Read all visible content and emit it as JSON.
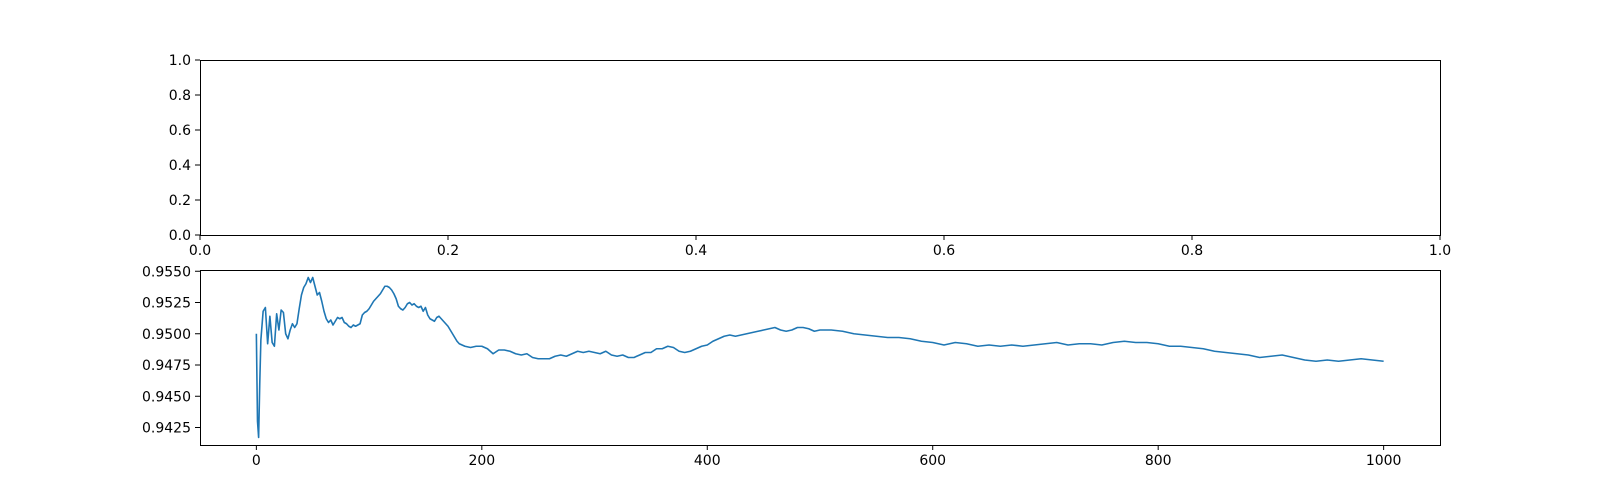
{
  "chart_data": [
    {
      "type": "line",
      "title": "",
      "xlabel": "",
      "ylabel": "",
      "xlim": [
        0,
        1
      ],
      "ylim": [
        0,
        1
      ],
      "xticks": [
        "0.0",
        "0.2",
        "0.4",
        "0.6",
        "0.8",
        "1.0"
      ],
      "yticks": [
        "0.0",
        "0.2",
        "0.4",
        "0.6",
        "0.8",
        "1.0"
      ],
      "grid": false,
      "series": []
    },
    {
      "type": "line",
      "title": "",
      "xlabel": "",
      "ylabel": "",
      "xlim": [
        -50,
        1050
      ],
      "ylim": [
        0.9411,
        0.9551
      ],
      "xticks": [
        "0",
        "200",
        "400",
        "600",
        "800",
        "1000"
      ],
      "yticks": [
        "0.9425",
        "0.9450",
        "0.9475",
        "0.9500",
        "0.9525",
        "0.9550"
      ],
      "grid": false,
      "line_color": "#1f77b4",
      "series": [
        {
          "x": [
            0,
            1,
            2,
            3,
            4,
            6,
            8,
            10,
            12,
            14,
            16,
            18,
            20,
            22,
            24,
            26,
            28,
            30,
            32,
            34,
            36,
            38,
            40,
            42,
            44,
            46,
            48,
            50,
            52,
            54,
            56,
            58,
            60,
            62,
            64,
            66,
            68,
            70,
            72,
            74,
            76,
            78,
            80,
            82,
            84,
            86,
            88,
            90,
            92,
            94,
            96,
            98,
            100,
            102,
            104,
            106,
            108,
            110,
            112,
            114,
            116,
            118,
            120,
            122,
            124,
            126,
            128,
            130,
            132,
            134,
            136,
            138,
            140,
            142,
            144,
            146,
            148,
            150,
            152,
            154,
            156,
            158,
            160,
            162,
            164,
            166,
            168,
            170,
            172,
            174,
            176,
            178,
            180,
            185,
            190,
            195,
            200,
            205,
            210,
            215,
            220,
            225,
            230,
            235,
            240,
            245,
            250,
            255,
            260,
            265,
            270,
            275,
            280,
            285,
            290,
            295,
            300,
            305,
            310,
            315,
            320,
            325,
            330,
            335,
            340,
            345,
            350,
            355,
            360,
            365,
            370,
            375,
            380,
            385,
            390,
            395,
            400,
            405,
            410,
            415,
            420,
            425,
            430,
            435,
            440,
            445,
            450,
            455,
            460,
            465,
            470,
            475,
            480,
            485,
            490,
            495,
            500,
            510,
            520,
            530,
            540,
            550,
            560,
            570,
            580,
            590,
            600,
            610,
            620,
            630,
            640,
            650,
            660,
            670,
            680,
            690,
            700,
            710,
            720,
            730,
            740,
            750,
            760,
            770,
            780,
            790,
            800,
            810,
            820,
            830,
            840,
            850,
            860,
            870,
            880,
            890,
            900,
            910,
            920,
            930,
            940,
            950,
            960,
            970,
            980,
            990,
            1000
          ],
          "y": [
            0.95,
            0.943,
            0.9417,
            0.946,
            0.9495,
            0.9518,
            0.9521,
            0.9492,
            0.9514,
            0.9493,
            0.949,
            0.9516,
            0.9503,
            0.9519,
            0.9517,
            0.95,
            0.9496,
            0.9503,
            0.9508,
            0.9505,
            0.9508,
            0.952,
            0.9531,
            0.9537,
            0.954,
            0.9545,
            0.9541,
            0.9545,
            0.9538,
            0.9531,
            0.9533,
            0.9526,
            0.9518,
            0.9512,
            0.9509,
            0.9511,
            0.9507,
            0.951,
            0.9513,
            0.9512,
            0.9513,
            0.9509,
            0.9508,
            0.9506,
            0.9505,
            0.9507,
            0.9506,
            0.9507,
            0.9508,
            0.9515,
            0.9517,
            0.9518,
            0.952,
            0.9523,
            0.9526,
            0.9528,
            0.953,
            0.9532,
            0.9535,
            0.9538,
            0.9538,
            0.9537,
            0.9535,
            0.9532,
            0.9528,
            0.9522,
            0.952,
            0.9519,
            0.9521,
            0.9524,
            0.9525,
            0.9523,
            0.9524,
            0.9522,
            0.9521,
            0.9522,
            0.9518,
            0.9521,
            0.9515,
            0.9512,
            0.9511,
            0.951,
            0.9513,
            0.9514,
            0.9512,
            0.951,
            0.9508,
            0.9506,
            0.9503,
            0.95,
            0.9497,
            0.9494,
            0.9492,
            0.949,
            0.9489,
            0.949,
            0.949,
            0.9488,
            0.9484,
            0.9487,
            0.9487,
            0.9486,
            0.9484,
            0.9483,
            0.9484,
            0.9481,
            0.948,
            0.948,
            0.948,
            0.9482,
            0.9483,
            0.9482,
            0.9484,
            0.9486,
            0.9485,
            0.9486,
            0.9485,
            0.9484,
            0.9486,
            0.9483,
            0.9482,
            0.9483,
            0.9481,
            0.9481,
            0.9483,
            0.9485,
            0.9485,
            0.9488,
            0.9488,
            0.949,
            0.9489,
            0.9486,
            0.9485,
            0.9486,
            0.9488,
            0.949,
            0.9491,
            0.9494,
            0.9496,
            0.9498,
            0.9499,
            0.9498,
            0.9499,
            0.95,
            0.9501,
            0.9502,
            0.9503,
            0.9504,
            0.9505,
            0.9503,
            0.9502,
            0.9503,
            0.9505,
            0.9505,
            0.9504,
            0.9502,
            0.9503,
            0.9503,
            0.9502,
            0.95,
            0.9499,
            0.9498,
            0.9497,
            0.9497,
            0.9496,
            0.9494,
            0.9493,
            0.9491,
            0.9493,
            0.9492,
            0.949,
            0.9491,
            0.949,
            0.9491,
            0.949,
            0.9491,
            0.9492,
            0.9493,
            0.9491,
            0.9492,
            0.9492,
            0.9491,
            0.9493,
            0.9494,
            0.9493,
            0.9493,
            0.9492,
            0.949,
            0.949,
            0.9489,
            0.9488,
            0.9486,
            0.9485,
            0.9484,
            0.9483,
            0.9481,
            0.9482,
            0.9483,
            0.9481,
            0.9479,
            0.9478,
            0.9479,
            0.9478,
            0.9479,
            0.948,
            0.9479,
            0.9478
          ]
        }
      ]
    }
  ]
}
